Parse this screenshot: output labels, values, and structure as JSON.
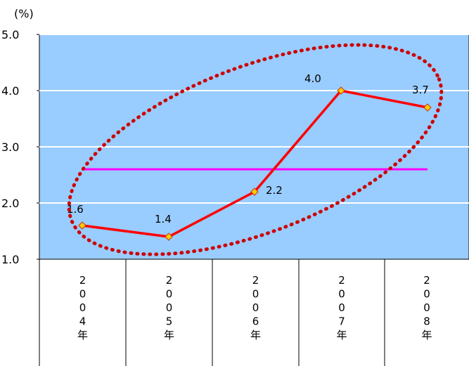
{
  "chart_data": {
    "type": "line",
    "title": "",
    "unit_label": "(%)",
    "ylim": [
      1.0,
      5.0
    ],
    "yticks": [
      "1.0",
      "2.0",
      "3.0",
      "4.0",
      "5.0"
    ],
    "ytick_values": [
      1.0,
      2.0,
      3.0,
      4.0,
      5.0
    ],
    "grid": true,
    "categories": [
      "2004年",
      "2005年",
      "2006年",
      "2007年",
      "2008年"
    ],
    "series": [
      {
        "values": [
          1.6,
          1.4,
          2.2,
          4.0,
          3.7
        ],
        "data_labels": [
          "1.6",
          "1.4",
          "2.2",
          "4.0",
          "3.7"
        ],
        "color": "#ff0000",
        "marker_color": "#ffcc00"
      }
    ],
    "reference_line": {
      "value": 2.6,
      "color": "#ff00ff"
    },
    "annotation_ellipse": {
      "color": "#cc0000",
      "style": "dotted"
    },
    "plot_background": "#99ccff",
    "grid_color": "#ffffff"
  }
}
